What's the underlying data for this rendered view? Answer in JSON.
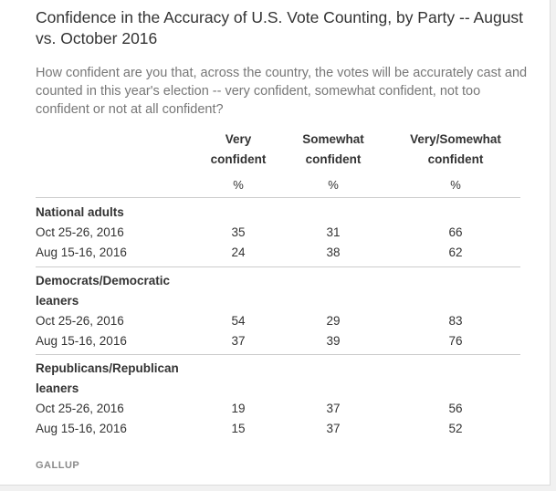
{
  "chart_data": {
    "type": "table",
    "title": "Confidence in the Accuracy of U.S. Vote Counting, by Party -- August vs. October 2016",
    "subtitle": "How confident are you that, across the country, the votes will be accurately cast and counted in this year's election -- very confident, somewhat confident, not too confident or not at all confident?",
    "columns": [
      {
        "line1": "Very",
        "line2": "confident",
        "unit": "%"
      },
      {
        "line1": "Somewhat",
        "line2": "confident",
        "unit": "%"
      },
      {
        "line1": "Very/Somewhat",
        "line2": "confident",
        "unit": "%"
      }
    ],
    "groups": [
      {
        "label_lines": [
          "National adults"
        ],
        "rows": [
          {
            "label": "Oct 25-26, 2016",
            "values": [
              35,
              31,
              66
            ]
          },
          {
            "label": "Aug 15-16, 2016",
            "values": [
              24,
              38,
              62
            ]
          }
        ]
      },
      {
        "label_lines": [
          "Democrats/Democratic",
          "leaners"
        ],
        "rows": [
          {
            "label": "Oct 25-26, 2016",
            "values": [
              54,
              29,
              83
            ]
          },
          {
            "label": "Aug 15-16, 2016",
            "values": [
              37,
              39,
              76
            ]
          }
        ]
      },
      {
        "label_lines": [
          "Republicans/Republican",
          "leaners"
        ],
        "rows": [
          {
            "label": "Oct 25-26, 2016",
            "values": [
              19,
              37,
              56
            ]
          },
          {
            "label": "Aug 15-16, 2016",
            "values": [
              15,
              37,
              52
            ]
          }
        ]
      }
    ],
    "source": "GALLUP"
  }
}
